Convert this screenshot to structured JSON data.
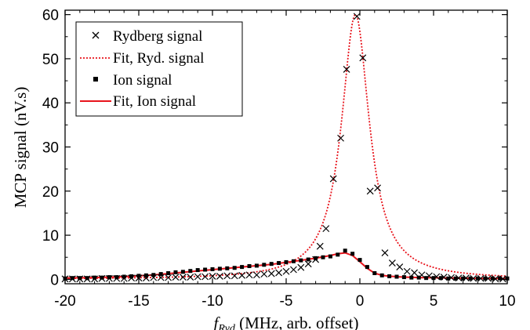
{
  "chart_data": {
    "type": "scatter",
    "title": "",
    "xlabel": "f",
    "xlabel_sub": "Ryd",
    "xlabel_rest": " (MHz, arb. offset)",
    "ylabel": "MCP signal (nV.s)",
    "xlim": [
      -20,
      10
    ],
    "ylim": [
      -1,
      61
    ],
    "xticks": [
      -20,
      -15,
      -10,
      -5,
      0,
      5,
      10
    ],
    "yticks": [
      0,
      10,
      20,
      30,
      40,
      50,
      60
    ],
    "grid": false,
    "legend_position": "top-left",
    "series": [
      {
        "name": "Rydberg signal",
        "kind": "scatter",
        "marker": "x",
        "color": "#000000",
        "x": [
          -20,
          -19.5,
          -19,
          -18.5,
          -18,
          -17.5,
          -17,
          -16.5,
          -16,
          -15.5,
          -15,
          -14.5,
          -14,
          -13.5,
          -13,
          -12.5,
          -12,
          -11.5,
          -11,
          -10.5,
          -10,
          -9.5,
          -9,
          -8.5,
          -8,
          -7.5,
          -7,
          -6.5,
          -6,
          -5.5,
          -5,
          -4.5,
          -4,
          -3.5,
          -3,
          -2.7,
          -2.3,
          -1.8,
          -1.3,
          -0.9,
          -0.2,
          0.2,
          0.7,
          1.2,
          1.7,
          2.2,
          2.7,
          3.2,
          3.7,
          4.2,
          4.7,
          5.2,
          5.7,
          6.2,
          6.7,
          7.2,
          7.7,
          8.2,
          8.7,
          9.2,
          9.7
        ],
        "y": [
          0.1,
          0.1,
          0.1,
          0.1,
          0.1,
          0.2,
          0.2,
          0.2,
          0.2,
          0.3,
          0.3,
          0.3,
          0.4,
          0.4,
          0.4,
          0.5,
          0.5,
          0.5,
          0.6,
          0.6,
          0.7,
          0.7,
          0.8,
          0.8,
          0.9,
          1.0,
          1.0,
          1.2,
          1.3,
          1.5,
          1.8,
          2.2,
          2.7,
          3.5,
          4.5,
          7.5,
          11.5,
          22.8,
          32.0,
          47.6,
          59.6,
          50.2,
          20.0,
          20.7,
          6.0,
          3.7,
          2.8,
          1.8,
          1.5,
          1.0,
          0.8,
          0.6,
          0.5,
          0.4,
          0.3,
          0.3,
          0.2,
          0.2,
          0.2,
          0.1,
          0.1
        ]
      },
      {
        "name": "Fit, Ryd. signal",
        "kind": "line",
        "style": "dotted",
        "color": "#e8141c",
        "model": {
          "center": -0.3,
          "fwhm": 2.3,
          "peak": 60.0,
          "offset": 0.0
        }
      },
      {
        "name": "Ion signal",
        "kind": "scatter",
        "marker": "square",
        "color": "#000000",
        "x": [
          -20,
          -19.5,
          -19,
          -18.5,
          -18,
          -17.5,
          -17,
          -16.5,
          -16,
          -15.5,
          -15,
          -14.5,
          -14,
          -13.5,
          -13,
          -12.5,
          -12,
          -11.5,
          -11,
          -10.5,
          -10,
          -9.5,
          -9,
          -8.5,
          -8,
          -7.5,
          -7,
          -6.5,
          -6,
          -5.5,
          -5,
          -4.5,
          -4,
          -3.5,
          -3,
          -2.5,
          -2,
          -1.5,
          -1,
          -0.5,
          0,
          0.5,
          1,
          1.5,
          2,
          2.5,
          3,
          3.5,
          4,
          4.5,
          5,
          5.5,
          6,
          6.5,
          7,
          7.5,
          8,
          8.5,
          9,
          9.5,
          10
        ],
        "y": [
          0.2,
          0.3,
          0.3,
          0.3,
          0.4,
          0.4,
          0.5,
          0.5,
          0.6,
          0.7,
          0.8,
          0.9,
          1.0,
          1.2,
          1.4,
          1.6,
          1.7,
          1.9,
          2.1,
          2.2,
          2.3,
          2.4,
          2.5,
          2.6,
          2.8,
          3.0,
          3.1,
          3.3,
          3.5,
          3.7,
          3.9,
          4.1,
          4.3,
          4.5,
          4.8,
          5.0,
          5.2,
          5.6,
          6.5,
          5.8,
          4.4,
          2.8,
          1.4,
          0.9,
          0.7,
          0.6,
          0.5,
          0.4,
          0.4,
          0.3,
          0.3,
          0.3,
          0.2,
          0.2,
          0.2,
          0.2,
          0.2,
          0.2,
          0.2,
          0.2,
          0.2
        ]
      },
      {
        "name": "Fit, Ion signal",
        "kind": "line",
        "style": "solid",
        "color": "#e8141c",
        "x": [
          -20,
          -18,
          -16,
          -14,
          -12,
          -10,
          -8,
          -6,
          -4,
          -3,
          -2,
          -1.5,
          -1,
          -0.5,
          0,
          0.5,
          1,
          1.5,
          2,
          3,
          4,
          6,
          8,
          10
        ],
        "y": [
          0.3,
          0.4,
          0.6,
          1.0,
          1.6,
          2.2,
          2.8,
          3.4,
          4.3,
          4.8,
          5.4,
          5.8,
          6.0,
          5.4,
          4.0,
          2.5,
          1.4,
          0.9,
          0.7,
          0.5,
          0.4,
          0.3,
          0.2,
          0.2
        ]
      }
    ]
  }
}
